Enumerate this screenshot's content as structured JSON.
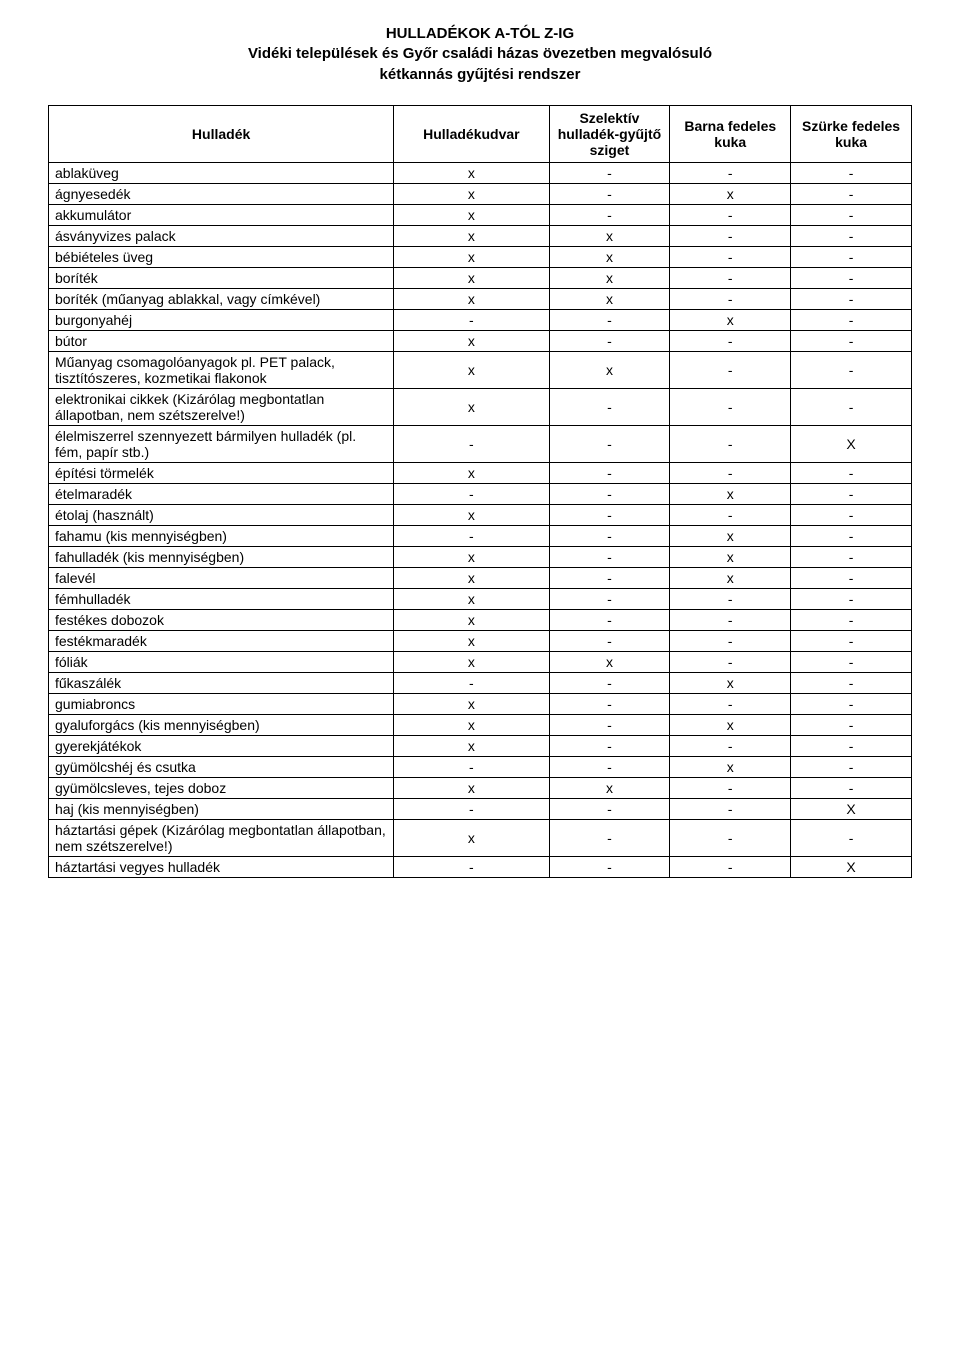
{
  "title": {
    "lines": [
      "HULLADÉKOK A-TÓL Z-IG",
      "Vidéki települések és Győr családi házas övezetben megvalósuló",
      "kétkannás gyűjtési rendszer"
    ]
  },
  "table": {
    "columns": [
      "Hulladék",
      "Hulladékudvar",
      "Szelektív hulladék-gyűjtő sziget",
      "Barna fedeles kuka",
      "Szürke fedeles kuka"
    ],
    "rows": [
      {
        "name": "ablaküveg",
        "c": [
          "x",
          "-",
          "-",
          "-"
        ]
      },
      {
        "name": "ágnyesedék",
        "c": [
          "x",
          "-",
          "x",
          "-"
        ]
      },
      {
        "name": "akkumulátor",
        "c": [
          "x",
          "-",
          "-",
          "-"
        ]
      },
      {
        "name": "ásványvizes palack",
        "c": [
          "x",
          "x",
          "-",
          "-"
        ]
      },
      {
        "name": "bébiételes üveg",
        "c": [
          "x",
          "x",
          "-",
          "-"
        ]
      },
      {
        "name": "boríték",
        "c": [
          "x",
          "x",
          "-",
          "-"
        ]
      },
      {
        "name": "boríték (műanyag ablakkal, vagy címkével)",
        "c": [
          "x",
          "x",
          "-",
          "-"
        ]
      },
      {
        "name": "burgonyahéj",
        "c": [
          "-",
          "-",
          "x",
          "-"
        ]
      },
      {
        "name": "bútor",
        "c": [
          "x",
          "-",
          "-",
          "-"
        ]
      },
      {
        "name": "Műanyag csomagolóanyagok pl. PET palack, tisztítószeres, kozmetikai flakonok",
        "c": [
          "x",
          "x",
          "-",
          "-"
        ]
      },
      {
        "name": "elektronikai cikkek (Kizárólag megbontatlan állapotban, nem szétszerelve!)",
        "c": [
          "x",
          "-",
          "-",
          "-"
        ]
      },
      {
        "name": "élelmiszerrel szennyezett bármilyen hulladék (pl. fém, papír stb.)",
        "c": [
          "-",
          "-",
          "-",
          "X"
        ]
      },
      {
        "name": "építési törmelék",
        "c": [
          "x",
          "-",
          "-",
          "-"
        ]
      },
      {
        "name": "ételmaradék",
        "c": [
          "-",
          "-",
          "x",
          "-"
        ]
      },
      {
        "name": "étolaj (használt)",
        "c": [
          "x",
          "-",
          "-",
          "-"
        ]
      },
      {
        "name": "fahamu (kis mennyiségben)",
        "c": [
          "-",
          "-",
          "x",
          "-"
        ]
      },
      {
        "name": "fahulladék (kis mennyiségben)",
        "c": [
          "x",
          "-",
          "x",
          "-"
        ]
      },
      {
        "name": "falevél",
        "c": [
          "x",
          "-",
          "x",
          "-"
        ]
      },
      {
        "name": "fémhulladék",
        "c": [
          "x",
          "-",
          "-",
          "-"
        ]
      },
      {
        "name": "festékes dobozok",
        "c": [
          "x",
          "-",
          "-",
          "-"
        ]
      },
      {
        "name": "festékmaradék",
        "c": [
          "x",
          "-",
          "-",
          "-"
        ]
      },
      {
        "name": "fóliák",
        "c": [
          "x",
          "x",
          "-",
          "-"
        ]
      },
      {
        "name": "fűkaszálék",
        "c": [
          "-",
          "-",
          "x",
          "-"
        ]
      },
      {
        "name": "gumiabroncs",
        "c": [
          "x",
          "-",
          "-",
          "-"
        ]
      },
      {
        "name": "gyaluforgács (kis mennyiségben)",
        "c": [
          "x",
          "-",
          "x",
          "-"
        ]
      },
      {
        "name": "gyerekjátékok",
        "c": [
          "x",
          "-",
          "-",
          "-"
        ]
      },
      {
        "name": "gyümölcshéj és csutka",
        "c": [
          "-",
          "-",
          "x",
          "-"
        ]
      },
      {
        "name": "gyümölcsleves, tejes doboz",
        "c": [
          "x",
          "x",
          "-",
          "-"
        ]
      },
      {
        "name": "haj (kis mennyiségben)",
        "c": [
          "-",
          "-",
          "-",
          "X"
        ]
      },
      {
        "name": "háztartási gépek (Kizárólag megbontatlan állapotban, nem szétszerelve!)",
        "c": [
          "x",
          "-",
          "-",
          "-"
        ]
      },
      {
        "name": "háztartási vegyes hulladék",
        "c": [
          "-",
          "-",
          "-",
          "X"
        ]
      }
    ]
  }
}
